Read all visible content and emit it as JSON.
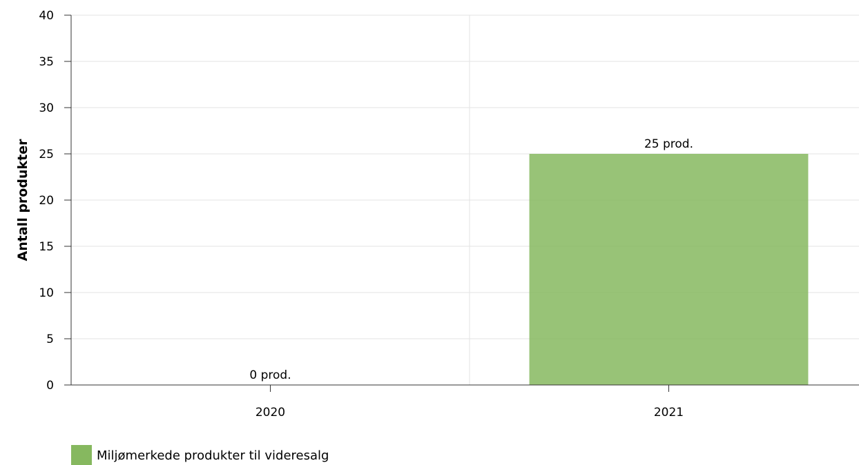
{
  "chart_data": {
    "type": "bar",
    "categories": [
      "2020",
      "2021"
    ],
    "series": [
      {
        "name": "Miljømerkede produkter til videresalg",
        "values": [
          0,
          25
        ],
        "data_labels": [
          "0 prod.",
          "25 prod."
        ],
        "color": "#86b85f"
      }
    ],
    "xlabel": "",
    "ylabel": "Antall produkter",
    "ylim": [
      0,
      40
    ],
    "yticks": [
      0,
      5,
      10,
      15,
      20,
      25,
      30,
      35,
      40
    ],
    "grid": true,
    "legend_position": "bottom-left"
  }
}
